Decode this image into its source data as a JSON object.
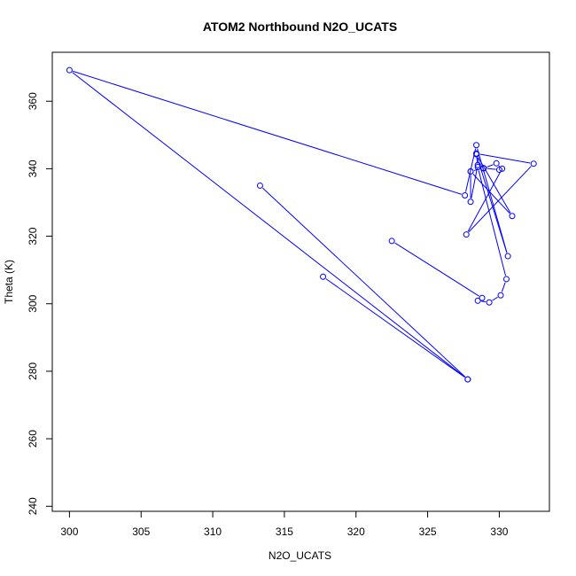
{
  "chart_data": {
    "type": "line",
    "title": "ATOM2 Northbound N2O_UCATS",
    "xlabel": "N2O_UCATS",
    "ylabel": "Theta (K)",
    "xlim": [
      298.8,
      333.5
    ],
    "ylim": [
      238.5,
      374.5
    ],
    "xticks": [
      300,
      305,
      310,
      315,
      320,
      325,
      330
    ],
    "yticks": [
      240,
      260,
      280,
      300,
      320,
      340,
      360
    ],
    "grid": false,
    "line_color": "#0000ff",
    "marker": "open-circle",
    "series": [
      {
        "points": [
          {
            "x": 313.3,
            "y": 335.0
          },
          {
            "x": 327.8,
            "y": 277.6
          },
          {
            "x": 300.0,
            "y": 369.2
          },
          {
            "x": 327.6,
            "y": 332.1
          },
          {
            "x": 328.4,
            "y": 347.0
          },
          {
            "x": 330.6,
            "y": 314.1
          },
          {
            "x": 328.4,
            "y": 344.3
          },
          {
            "x": 330.9,
            "y": 326.0
          },
          {
            "x": 328.0,
            "y": 339.2
          },
          {
            "x": 328.0,
            "y": 330.2
          },
          {
            "x": 328.5,
            "y": 341.1
          },
          {
            "x": 328.9,
            "y": 340.1
          },
          {
            "x": 329.8,
            "y": 341.6
          },
          {
            "x": 330.2,
            "y": 340.0
          },
          {
            "x": 327.7,
            "y": 320.5
          },
          {
            "x": 332.4,
            "y": 341.5
          },
          {
            "x": 328.4,
            "y": 344.5
          },
          {
            "x": 328.5,
            "y": 340.5
          },
          {
            "x": 330.5,
            "y": 307.3
          },
          {
            "x": 330.1,
            "y": 302.5
          },
          {
            "x": 329.3,
            "y": 300.4
          },
          {
            "x": 328.5,
            "y": 300.9
          },
          {
            "x": 328.8,
            "y": 301.7
          },
          {
            "x": 322.5,
            "y": 318.6
          }
        ]
      },
      {
        "points": [
          {
            "x": 327.8,
            "y": 277.6
          },
          {
            "x": 317.7,
            "y": 308.0
          }
        ]
      },
      {
        "points": [
          {
            "x": 328.0,
            "y": 339.2
          },
          {
            "x": 328.9,
            "y": 340.2
          },
          {
            "x": 330.0,
            "y": 339.7
          }
        ]
      }
    ]
  }
}
